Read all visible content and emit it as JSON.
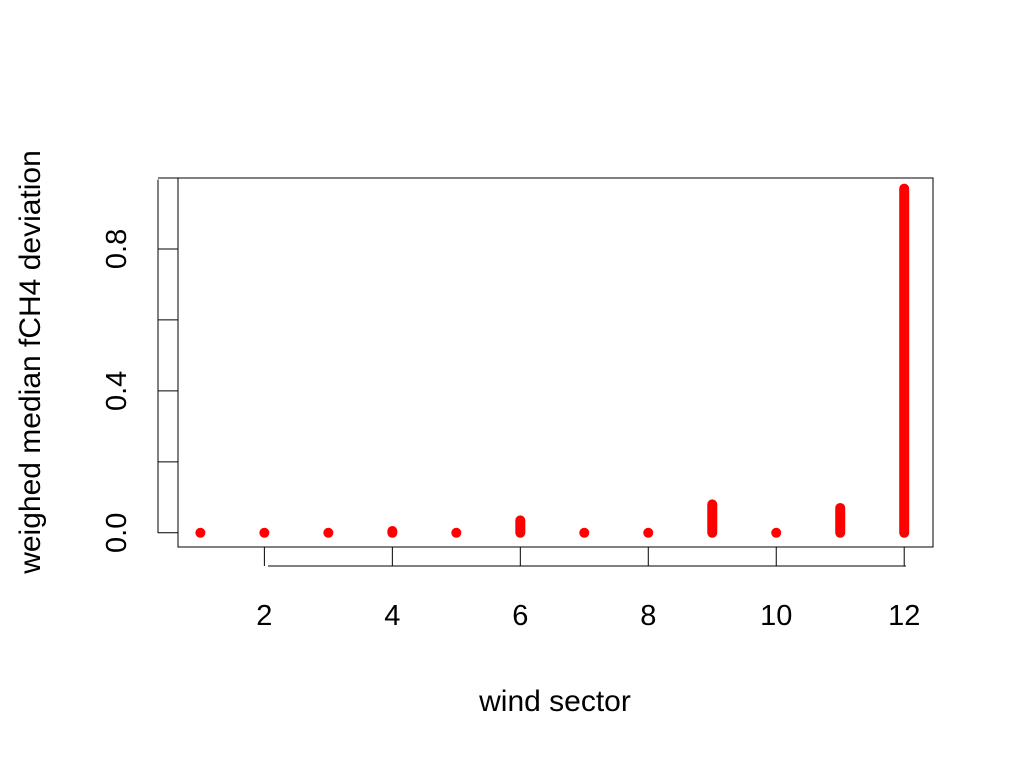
{
  "chart_data": {
    "type": "scatter",
    "title": "",
    "xlabel": "wind sector",
    "ylabel": "weighed median fCH4 deviation",
    "xlim": [
      0.65,
      12.45
    ],
    "ylim": [
      -0.04,
      1.0
    ],
    "x_ticks": [
      2,
      4,
      6,
      8,
      10,
      12
    ],
    "y_ticks": [
      0.0,
      0.2,
      0.4,
      0.6,
      0.8,
      1.0
    ],
    "y_tick_labels": [
      "0.0",
      "",
      "0.4",
      "",
      "0.8",
      ""
    ],
    "grid": false,
    "legend": "none",
    "marker_color": "#ff0000",
    "series": [
      {
        "points": [
          {
            "x": 1,
            "ymin": 0.0,
            "ymax": 0.0
          },
          {
            "x": 2,
            "ymin": 0.0,
            "ymax": 0.0
          },
          {
            "x": 3,
            "ymin": 0.0,
            "ymax": 0.0
          },
          {
            "x": 4,
            "ymin": 0.0,
            "ymax": 0.005
          },
          {
            "x": 5,
            "ymin": 0.0,
            "ymax": 0.0
          },
          {
            "x": 6,
            "ymin": 0.0,
            "ymax": 0.035
          },
          {
            "x": 7,
            "ymin": 0.0,
            "ymax": 0.0
          },
          {
            "x": 8,
            "ymin": 0.0,
            "ymax": 0.0
          },
          {
            "x": 9,
            "ymin": 0.0,
            "ymax": 0.08
          },
          {
            "x": 10,
            "ymin": 0.0,
            "ymax": 0.0
          },
          {
            "x": 11,
            "ymin": 0.0,
            "ymax": 0.07
          },
          {
            "x": 12,
            "ymin": 0.0,
            "ymax": 0.97
          }
        ]
      }
    ]
  }
}
